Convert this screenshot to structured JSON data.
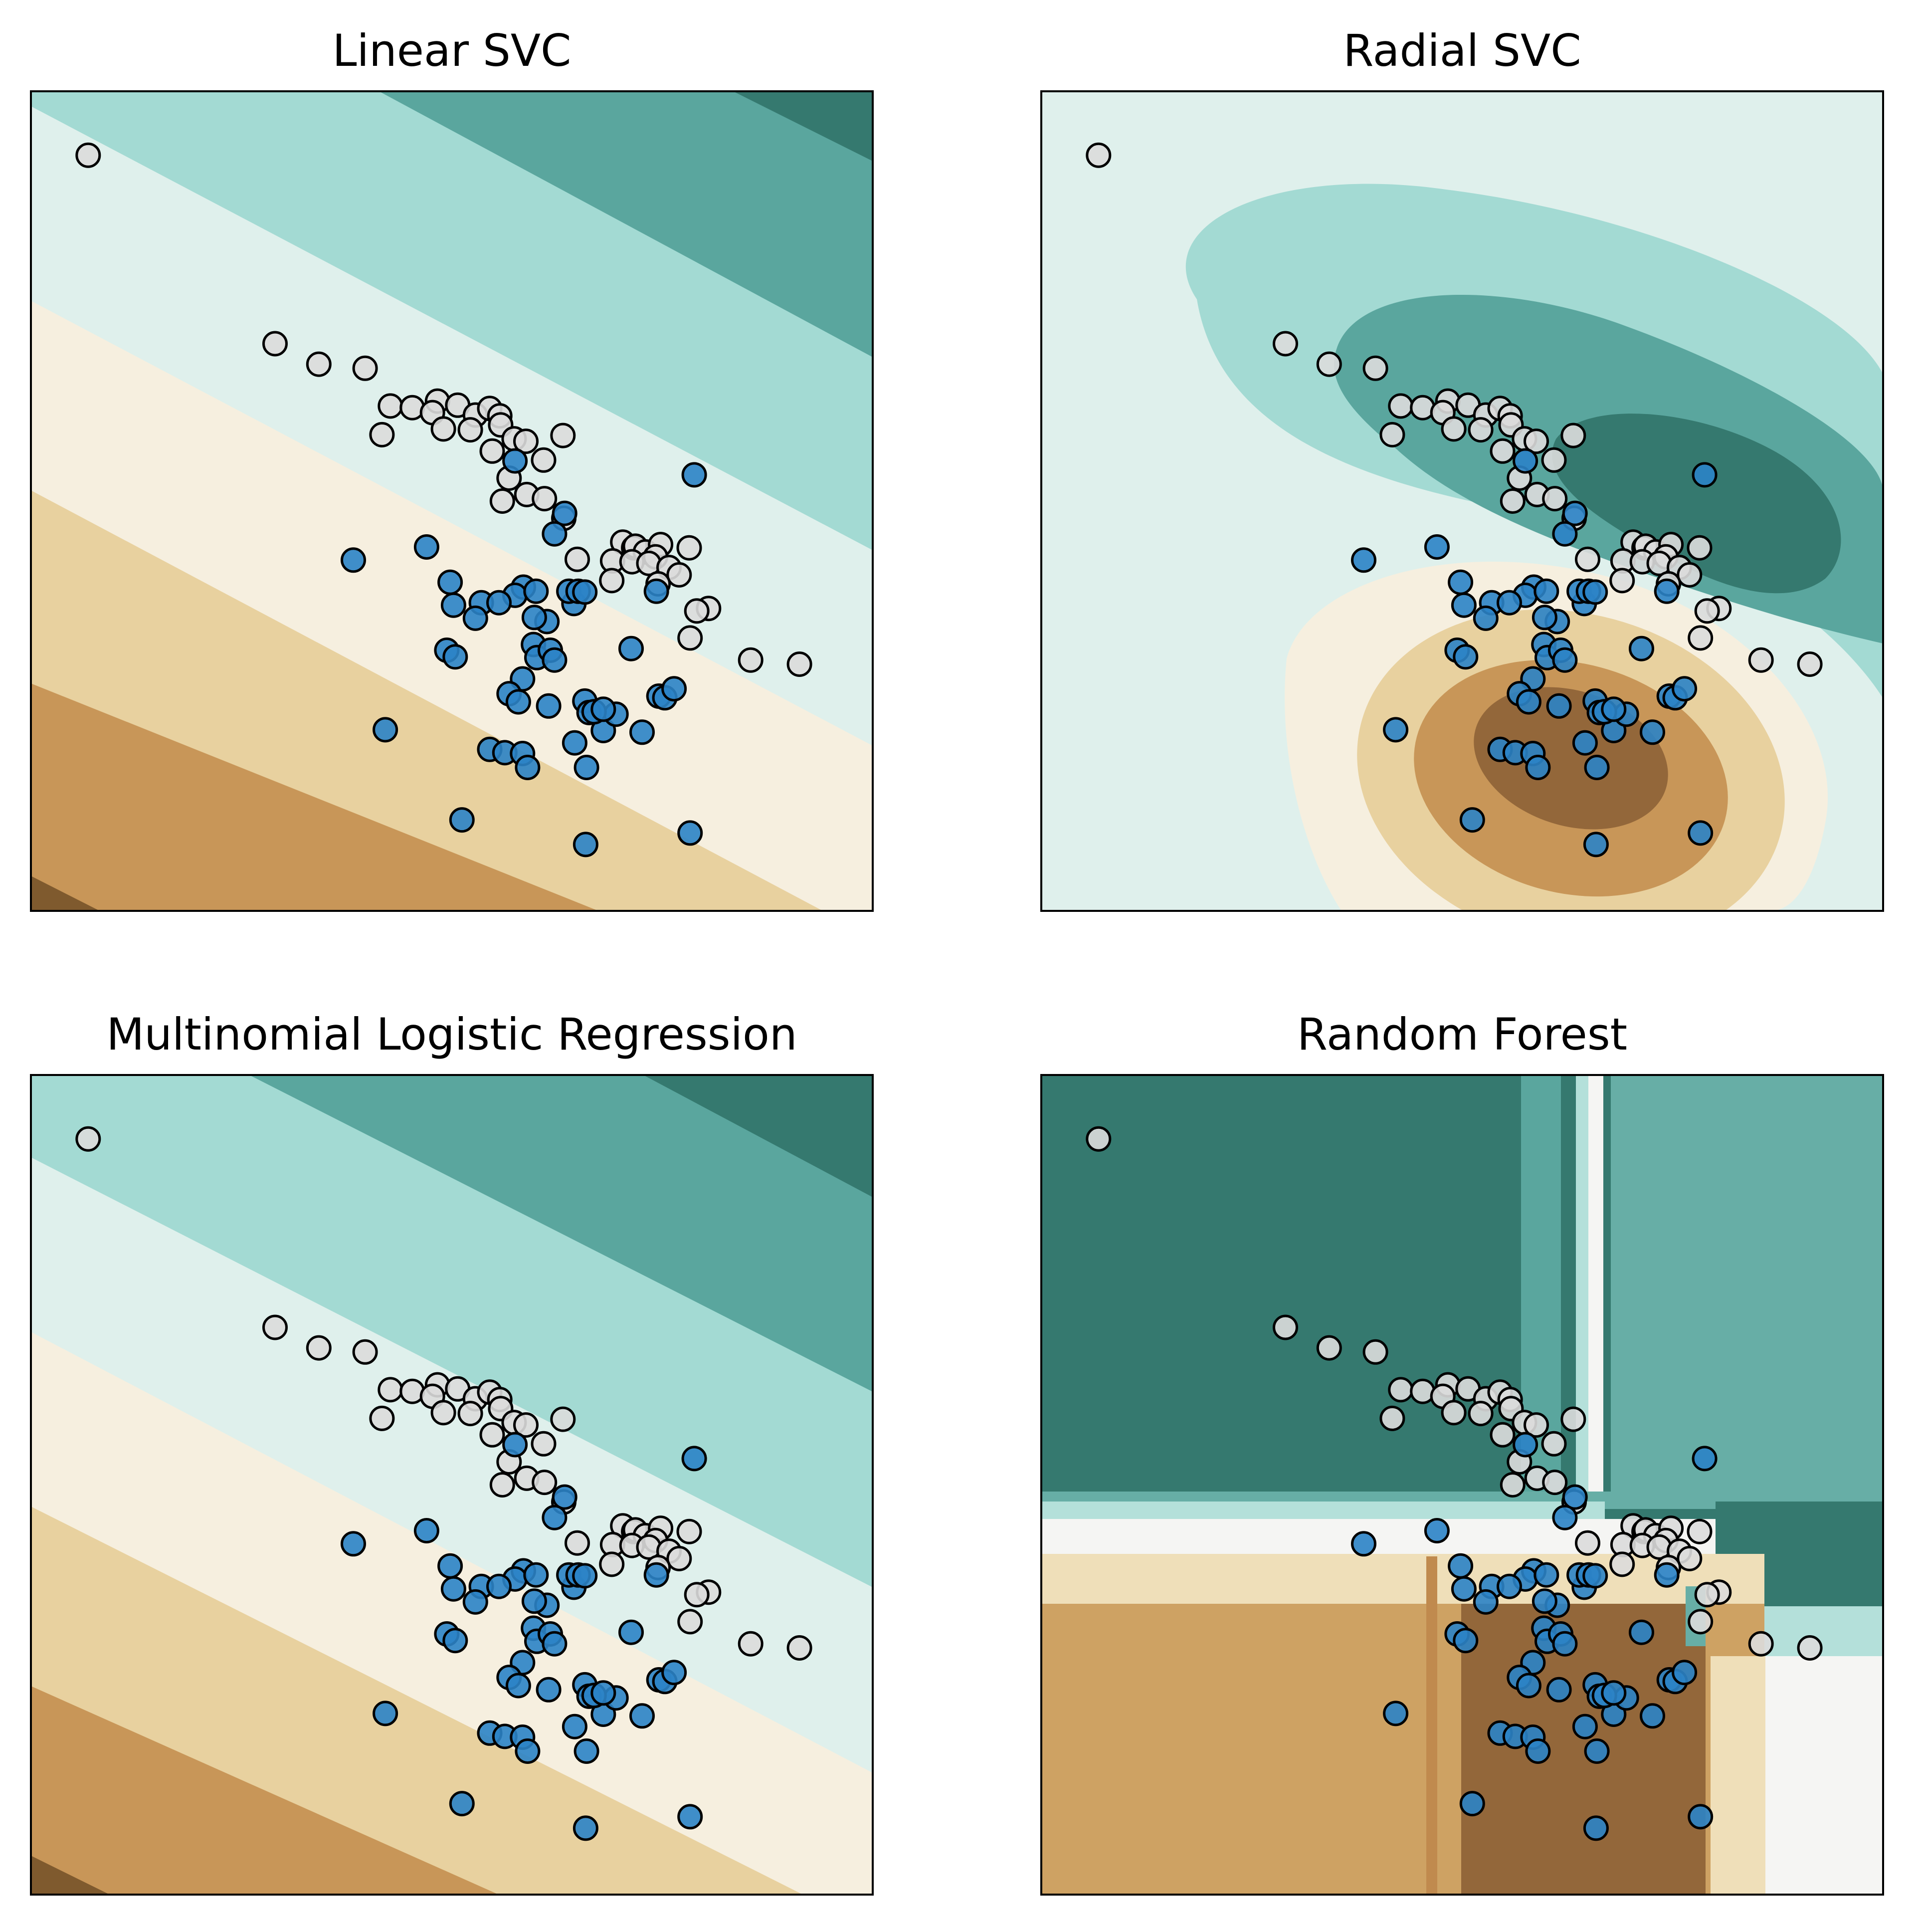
{
  "figure": {
    "panels": [
      {
        "key": "linear_svc",
        "title": "Linear SVC"
      },
      {
        "key": "radial_svc",
        "title": "Radial SVC"
      },
      {
        "key": "multinomial_lr",
        "title": "Multinomial Logistic Regression"
      },
      {
        "key": "random_forest",
        "title": "Random Forest"
      }
    ]
  },
  "chart_data": [
    {
      "type": "scatter",
      "title": "Linear SVC",
      "xlabel": "",
      "ylabel": "",
      "xlim": [
        0,
        1
      ],
      "ylim": [
        0,
        1
      ],
      "grid": false,
      "ticks": "none",
      "background": "filled decision contours (BrBG colormap), parallel linear bands",
      "contour_colors": [
        "#7f5a2e",
        "#c89658",
        "#e8d19f",
        "#f6efdf",
        "#dff0ec",
        "#a3dad3",
        "#5aa69e",
        "#35796f"
      ],
      "series": [
        {
          "color": "#dcdcdc",
          "points": [
            [
              0.068,
              0.922
            ],
            [
              0.29,
              0.692
            ],
            [
              0.342,
              0.667
            ],
            [
              0.397,
              0.662
            ],
            [
              0.427,
              0.616
            ],
            [
              0.453,
              0.614
            ],
            [
              0.483,
              0.622
            ],
            [
              0.477,
              0.608
            ],
            [
              0.507,
              0.617
            ],
            [
              0.528,
              0.605
            ],
            [
              0.545,
              0.613
            ],
            [
              0.557,
              0.604
            ],
            [
              0.417,
              0.581
            ],
            [
              0.49,
              0.588
            ],
            [
              0.522,
              0.587
            ],
            [
              0.558,
              0.593
            ],
            [
              0.574,
              0.576
            ],
            [
              0.588,
              0.573
            ],
            [
              0.632,
              0.58
            ],
            [
              0.548,
              0.561
            ],
            [
              0.609,
              0.55
            ],
            [
              0.568,
              0.528
            ],
            [
              0.56,
              0.5
            ],
            [
              0.589,
              0.508
            ],
            [
              0.61,
              0.503
            ],
            [
              0.633,
              0.479
            ],
            [
              0.703,
              0.45
            ],
            [
              0.716,
              0.443
            ],
            [
              0.718,
              0.445
            ],
            [
              0.73,
              0.438
            ],
            [
              0.748,
              0.447
            ],
            [
              0.742,
              0.432
            ],
            [
              0.691,
              0.427
            ],
            [
              0.714,
              0.426
            ],
            [
              0.734,
              0.424
            ],
            [
              0.758,
              0.419
            ],
            [
              0.782,
              0.443
            ],
            [
              0.77,
              0.41
            ],
            [
              0.805,
              0.369
            ],
            [
              0.69,
              0.403
            ],
            [
              0.745,
              0.399
            ],
            [
              0.791,
              0.366
            ],
            [
              0.783,
              0.333
            ],
            [
              0.855,
              0.306
            ],
            [
              0.649,
              0.429
            ],
            [
              0.913,
              0.301
            ]
          ]
        },
        {
          "color": "#2b83c6",
          "points": [
            [
              0.575,
              0.549
            ],
            [
              0.788,
              0.532
            ],
            [
              0.383,
              0.428
            ],
            [
              0.47,
              0.444
            ],
            [
              0.634,
              0.485
            ],
            [
              0.498,
              0.401
            ],
            [
              0.585,
              0.395
            ],
            [
              0.575,
              0.385
            ],
            [
              0.622,
              0.46
            ],
            [
              0.6,
              0.39
            ],
            [
              0.502,
              0.373
            ],
            [
              0.535,
              0.376
            ],
            [
              0.528,
              0.357
            ],
            [
              0.613,
              0.353
            ],
            [
              0.598,
              0.358
            ],
            [
              0.645,
              0.375
            ],
            [
              0.556,
              0.376
            ],
            [
              0.639,
              0.39
            ],
            [
              0.65,
              0.39
            ],
            [
              0.658,
              0.389
            ],
            [
              0.743,
              0.39
            ],
            [
              0.713,
              0.32
            ],
            [
              0.597,
              0.325
            ],
            [
              0.494,
              0.318
            ],
            [
              0.504,
              0.31
            ],
            [
              0.601,
              0.309
            ],
            [
              0.617,
              0.318
            ],
            [
              0.622,
              0.306
            ],
            [
              0.746,
              0.262
            ],
            [
              0.753,
              0.26
            ],
            [
              0.764,
              0.271
            ],
            [
              0.584,
              0.283
            ],
            [
              0.568,
              0.265
            ],
            [
              0.579,
              0.255
            ],
            [
              0.615,
              0.25
            ],
            [
              0.658,
              0.256
            ],
            [
              0.663,
              0.242
            ],
            [
              0.68,
              0.22
            ],
            [
              0.695,
              0.24
            ],
            [
              0.726,
              0.218
            ],
            [
              0.421,
              0.221
            ],
            [
              0.545,
              0.197
            ],
            [
              0.563,
              0.193
            ],
            [
              0.584,
              0.192
            ],
            [
              0.646,
              0.205
            ],
            [
              0.66,
              0.175
            ],
            [
              0.59,
              0.175
            ],
            [
              0.512,
              0.111
            ],
            [
              0.659,
              0.081
            ],
            [
              0.783,
              0.095
            ],
            [
              0.669,
              0.243
            ],
            [
              0.68,
              0.246
            ]
          ]
        }
      ]
    },
    {
      "type": "scatter",
      "title": "Radial SVC",
      "xlabel": "",
      "ylabel": "",
      "xlim": [
        0,
        1
      ],
      "ylim": [
        0,
        1
      ],
      "grid": false,
      "ticks": "none",
      "background": "filled decision contours (BrBG colormap), radial blobs",
      "contour_colors": [
        "#93673a",
        "#c89658",
        "#e8d19f",
        "#f6efdf",
        "#dff0ec",
        "#a3dad3",
        "#5aa69e",
        "#35796f"
      ]
    },
    {
      "type": "scatter",
      "title": "Multinomial Logistic Regression",
      "xlabel": "",
      "ylabel": "",
      "xlim": [
        0,
        1
      ],
      "ylim": [
        0,
        1
      ],
      "grid": false,
      "ticks": "none",
      "background": "filled decision contours (BrBG colormap), parallel linear bands",
      "contour_colors": [
        "#7f5a2e",
        "#c89658",
        "#e8d19f",
        "#f6efdf",
        "#dff0ec",
        "#a3dad3",
        "#5aa69e",
        "#35796f"
      ]
    },
    {
      "type": "scatter",
      "title": "Random Forest",
      "xlabel": "",
      "ylabel": "",
      "xlim": [
        0,
        1
      ],
      "ylim": [
        0,
        1
      ],
      "grid": false,
      "ticks": "none",
      "background": "filled decision regions (BrBG colormap), axis-aligned rectangles",
      "contour_colors": [
        "#93673a",
        "#cea263",
        "#efdfb9",
        "#f5f5f3",
        "#b4e0da",
        "#67aea6",
        "#35796f"
      ]
    }
  ]
}
